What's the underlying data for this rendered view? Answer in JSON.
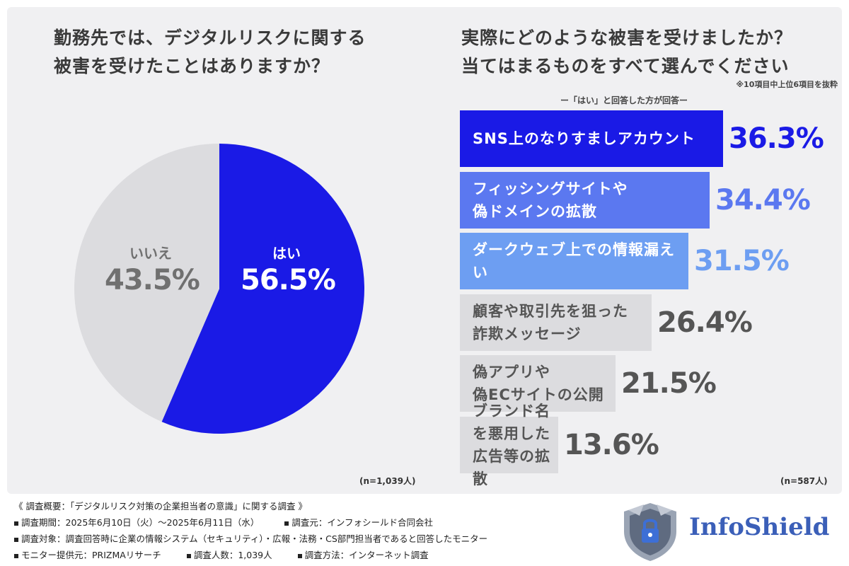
{
  "left_chart": {
    "title_line1": "勤務先では、デジタルリスクに関する",
    "title_line2": "被害を受けたことはありますか？",
    "n_label": "(n=1,039人)"
  },
  "right_chart": {
    "title_line1": "実際にどのような被害を受けましたか？",
    "title_line2": "当てはまるものをすべて選んでください",
    "note_items": "※10項目中上位6項目を抜粋",
    "note_answered": "ー「はい」と回答した方が回答ー",
    "n_label": "(n=587人)"
  },
  "chart_data": [
    {
      "type": "pie",
      "slices": [
        {
          "label": "はい",
          "value": 56.5,
          "value_label": "56.5%",
          "color": "#1a1ae6"
        },
        {
          "label": "いいえ",
          "value": 43.5,
          "value_label": "43.5%",
          "color": "#dcdcdf"
        }
      ]
    },
    {
      "type": "bar",
      "orientation": "horizontal",
      "xlim": [
        0,
        40
      ],
      "categories": [
        "SNS上のなりすましアカウント",
        "フィッシングサイトや\n偽ドメインの拡散",
        "ダークウェブ上での情報漏えい",
        "顧客や取引先を狙った\n詐欺メッセージ",
        "偽アプリや\n偽ECサイトの公開",
        "ブランド名を悪用した\n広告等の拡散"
      ],
      "values": [
        36.3,
        34.4,
        31.5,
        26.4,
        21.5,
        13.6
      ],
      "value_labels": [
        "36.3%",
        "34.4%",
        "31.5%",
        "26.4%",
        "21.5%",
        "13.6%"
      ],
      "bar_colors": [
        "#1a1ae6",
        "#5b78f0",
        "#6d9ef2",
        "#dcdcdf",
        "#dcdcdf",
        "#dcdcdf"
      ],
      "label_colors": [
        "#ffffff",
        "#ffffff",
        "#ffffff",
        "#555555",
        "#555555",
        "#555555"
      ],
      "value_colors": [
        "#1a1ae6",
        "#5b78f0",
        "#6d9ef2",
        "#555555",
        "#555555",
        "#555555"
      ]
    }
  ],
  "footer": {
    "heading": "《 調査概要：「デジタルリスク対策の企業担当者の意識」に関する調査 》",
    "period": "調査期間：2025年6月10日（火）〜2025年6月11日（水）",
    "organizer": "調査元：インフォシールド合同会社",
    "target": "調査対象：調査回答時に企業の情報システム（セキュリティ）・広報・法務・CS部門担当者であると回答したモニター",
    "provider": "モニター提供元：PRIZMAリサーチ",
    "count": "調査人数：1,039人",
    "method": "調査方法：インターネット調査"
  },
  "logo": {
    "text": "InfoShield",
    "text_color": "#3b5fb8",
    "icon": "shield-lock-icon"
  }
}
